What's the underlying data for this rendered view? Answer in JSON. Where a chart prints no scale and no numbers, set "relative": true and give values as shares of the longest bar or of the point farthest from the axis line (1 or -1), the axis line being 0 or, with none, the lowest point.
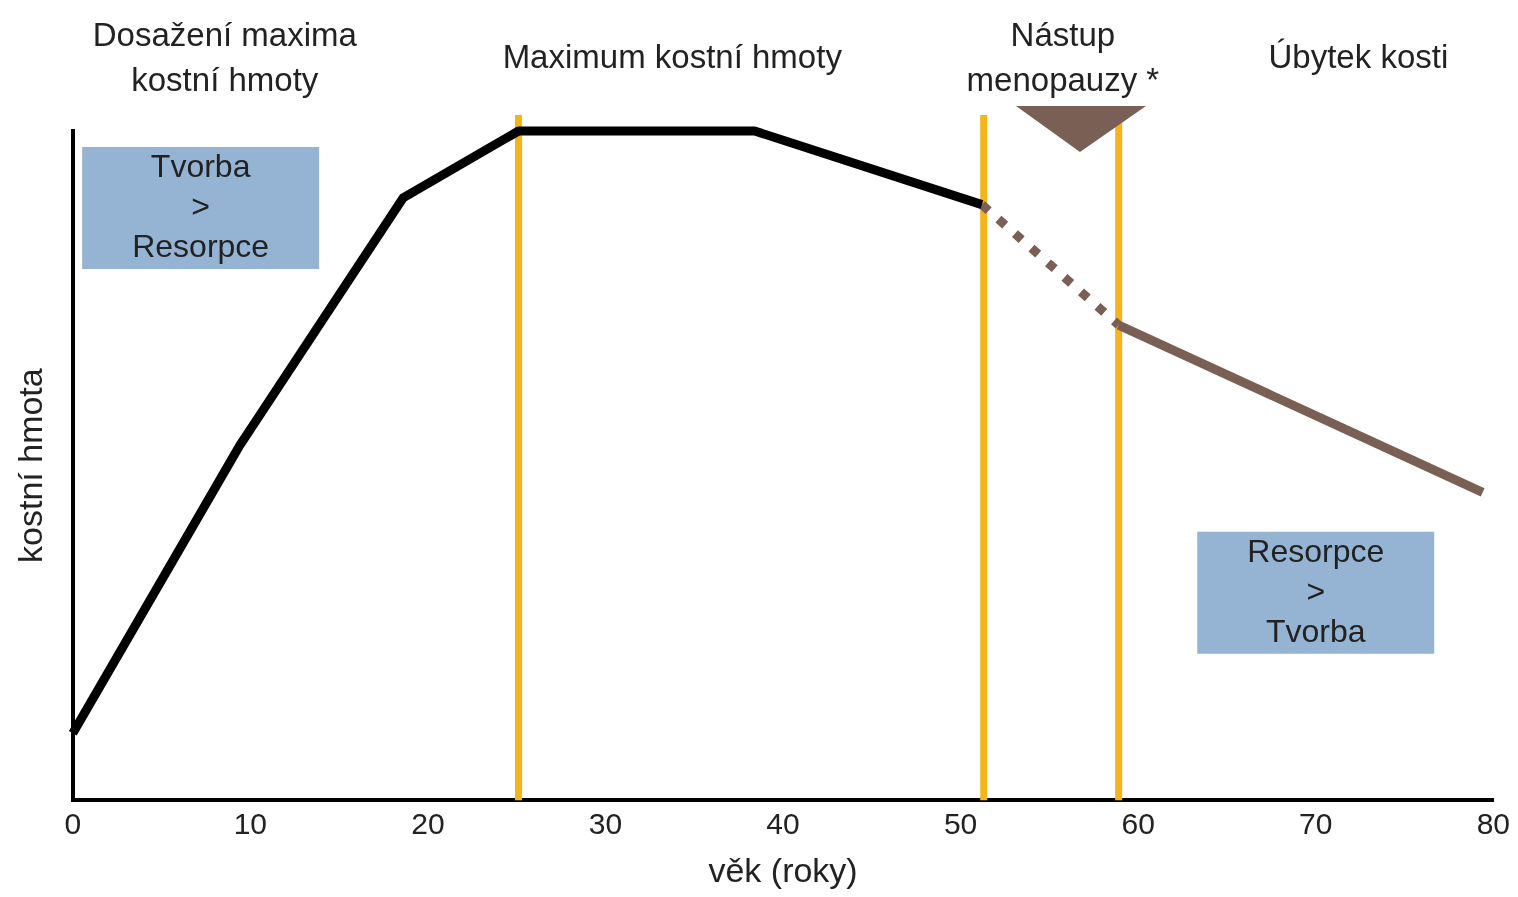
{
  "chart_data": {
    "type": "line",
    "relative": true,
    "xlabel": "věk (roky)",
    "ylabel": "kostní hmota",
    "xlim": [
      0,
      80
    ],
    "xticks": [
      0,
      10,
      20,
      30,
      40,
      50,
      60,
      70,
      80
    ],
    "series": [
      {
        "color": "#000000",
        "line_style": "solid",
        "x": [
          0,
          9.4,
          18.6,
          25.1,
          38.4,
          51.2
        ],
        "values": [
          0.1,
          0.53,
          0.9,
          1,
          1,
          0.89
        ]
      },
      {
        "color": "#7a5f54",
        "line_style": "dotted",
        "x": [
          51.2,
          58.9
        ],
        "values": [
          0.89,
          0.71
        ]
      },
      {
        "color": "#7a5f54",
        "line_style": "solid",
        "x": [
          58.9,
          79.4
        ],
        "values": [
          0.71,
          0.46
        ]
      }
    ],
    "ref_lines": [
      {
        "axis": "x",
        "value": 25.1,
        "color": "#f5b41a"
      },
      {
        "axis": "x",
        "value": 51.3,
        "color": "#f5b41a"
      },
      {
        "axis": "x",
        "value": 58.9,
        "color": "#f5b41a"
      }
    ],
    "annotations": [
      "Dosažení maxima\nkostní hmoty",
      "Maximum kostní hmoty",
      "Nástup\nmenopauzy *",
      "Úbytek kosti",
      "Tvorba\n>\nResorpce",
      "Resorpce\n>\nTvorba"
    ]
  }
}
